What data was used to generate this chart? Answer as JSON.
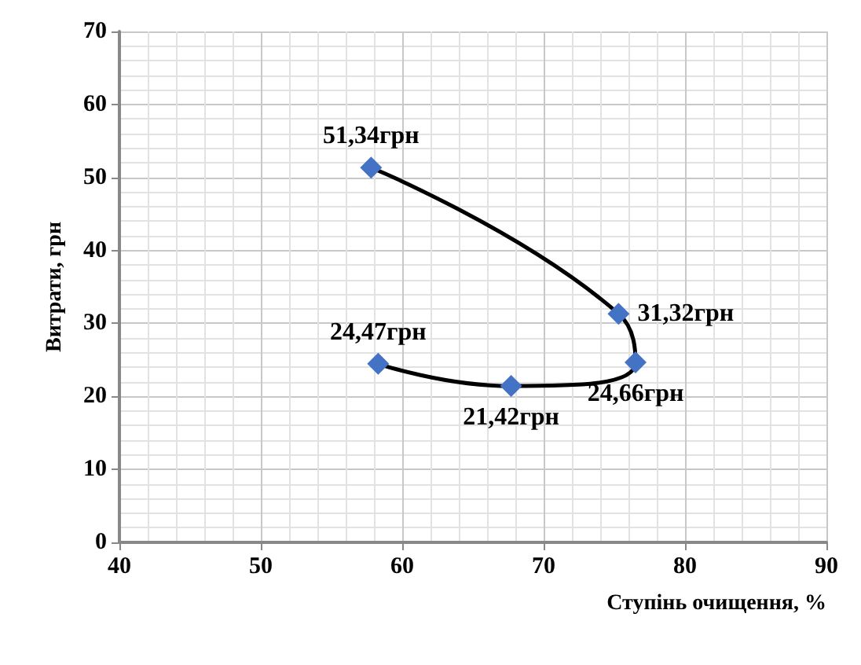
{
  "chart_data": {
    "type": "line",
    "xlabel": "Ступінь очищення, %",
    "ylabel": "Витрати, грн",
    "x": [
      57.8,
      75.3,
      76.5,
      67.7,
      58.3
    ],
    "series": [
      {
        "color": "#4472c4",
        "values": [
          51.34,
          31.32,
          24.66,
          21.42,
          24.47
        ],
        "value_labels": [
          "51,34грн",
          "31,32грн",
          "24,66грн",
          "21,42грн",
          "24,47грн"
        ]
      }
    ],
    "xlim": [
      40,
      90
    ],
    "xticks": [
      40,
      50,
      60,
      70,
      80,
      90
    ],
    "ylim": [
      0,
      70
    ],
    "yticks": [
      0,
      10,
      20,
      30,
      40,
      50,
      60,
      70
    ],
    "grid": true,
    "marker": "diamond",
    "line_style": "solid"
  }
}
